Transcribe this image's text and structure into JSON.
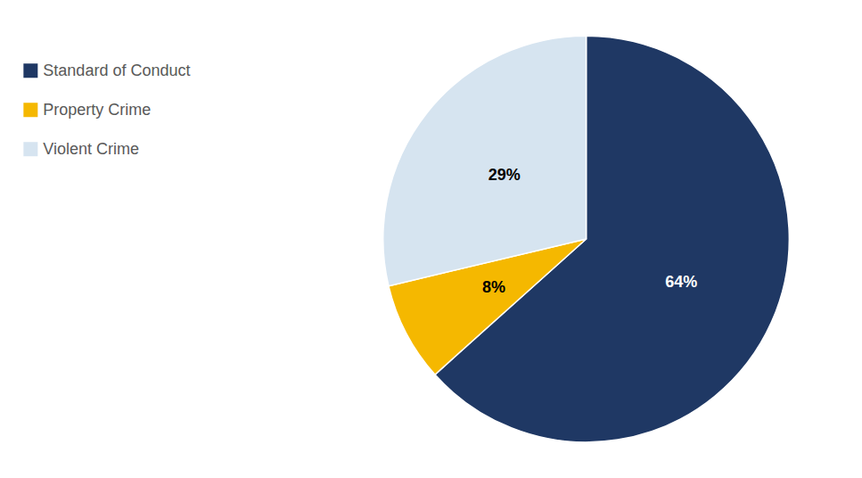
{
  "chart_data": {
    "type": "pie",
    "categories": [
      "Standard of Conduct",
      "Property Crime",
      "Violent Crime"
    ],
    "values": [
      64,
      8,
      29
    ],
    "value_labels": [
      "64%",
      "8%",
      "29%"
    ],
    "colors": [
      "#1f3864",
      "#f5b800",
      "#d6e4f0"
    ],
    "data_labels": true,
    "legend": "upper left"
  }
}
